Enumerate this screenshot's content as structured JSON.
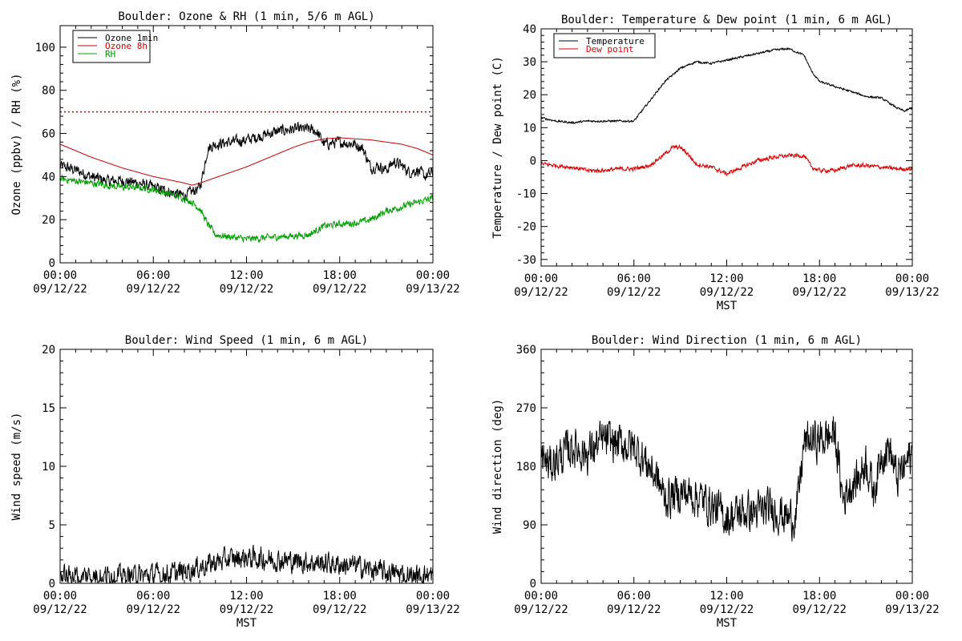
{
  "chart_data": [
    {
      "id": "ozone",
      "type": "line",
      "title": "Boulder: Ozone & RH (1 min, 5/6 m AGL)",
      "ylabel": "Ozone (ppbv) / RH (%)",
      "xlabel": "",
      "ylim": [
        0,
        110
      ],
      "yticks": [
        0,
        20,
        40,
        60,
        80,
        100
      ],
      "xlim": [
        0,
        24
      ],
      "xticks": [
        {
          "value": 0,
          "time": "00:00",
          "date": "09/12/22"
        },
        {
          "value": 6,
          "time": "06:00",
          "date": "09/12/22"
        },
        {
          "value": 12,
          "time": "12:00",
          "date": "09/12/22"
        },
        {
          "value": 18,
          "time": "18:00",
          "date": "09/12/22"
        },
        {
          "value": 24,
          "time": "00:00",
          "date": "09/13/22"
        }
      ],
      "legend": "top-left",
      "reference_line": {
        "y": 70,
        "color": "#cc0000",
        "style": "dotted"
      },
      "series": [
        {
          "name": "Ozone 1min",
          "color": "#000000",
          "noise": 2.5,
          "x": [
            0,
            0.5,
            1,
            2,
            3,
            4,
            5,
            6,
            7,
            8,
            8.5,
            9,
            9.3,
            9.5,
            10,
            11,
            12,
            13,
            14,
            15,
            16,
            16.5,
            17,
            18,
            19,
            19.5,
            20,
            20.5,
            21,
            21.5,
            22,
            22.5,
            23,
            23.5,
            24
          ],
          "y": [
            45,
            44,
            43,
            40,
            38,
            38,
            37,
            35,
            33,
            31,
            33,
            35,
            45,
            53,
            55,
            56,
            57,
            59,
            61,
            62,
            62,
            61,
            55,
            56,
            55,
            53,
            44,
            45,
            43,
            47,
            45,
            42,
            43,
            40,
            42
          ]
        },
        {
          "name": "Ozone 8h",
          "color": "#cc0000",
          "noise": 0,
          "x": [
            0,
            1,
            2,
            3,
            4,
            5,
            6,
            7,
            8,
            8.5,
            9,
            10,
            11,
            12,
            13,
            14,
            15,
            16,
            17,
            18,
            19,
            20,
            21,
            22,
            23,
            24
          ],
          "y": [
            55,
            52,
            49,
            46.5,
            44,
            42,
            40,
            38.5,
            37,
            36,
            37,
            39.5,
            42,
            44.5,
            47.5,
            50.5,
            53.5,
            56,
            57.5,
            58,
            57.5,
            57,
            56,
            55,
            53,
            50
          ]
        },
        {
          "name": "RH",
          "color": "#00a000",
          "noise": 1.5,
          "x": [
            0,
            1,
            2,
            3,
            4,
            5,
            6,
            7,
            8,
            8.5,
            9,
            9.5,
            10,
            11,
            12,
            13,
            14,
            15,
            16,
            17,
            18,
            19,
            20,
            21,
            22,
            23,
            24
          ],
          "y": [
            39,
            38,
            37,
            36,
            35,
            35,
            34,
            32,
            30,
            28,
            25,
            18,
            13,
            12,
            11,
            11.5,
            12,
            12.5,
            13,
            17,
            18,
            18.5,
            20,
            24,
            26,
            28,
            30
          ]
        }
      ]
    },
    {
      "id": "temperature",
      "type": "line",
      "title": "Boulder: Temperature & Dew point (1 min, 6 m AGL)",
      "ylabel": "Temperature / Dew point (C)",
      "xlabel": "MST",
      "ylim": [
        -32,
        40
      ],
      "yticks": [
        -30,
        -20,
        -10,
        0,
        10,
        20,
        30,
        40
      ],
      "xlim": [
        0,
        24
      ],
      "xticks": [
        {
          "value": 0,
          "time": "00:00",
          "date": "09/12/22"
        },
        {
          "value": 6,
          "time": "06:00",
          "date": "09/12/22"
        },
        {
          "value": 12,
          "time": "12:00",
          "date": "09/12/22"
        },
        {
          "value": 18,
          "time": "18:00",
          "date": "09/12/22"
        },
        {
          "value": 24,
          "time": "00:00",
          "date": "09/13/22"
        }
      ],
      "legend": "top-left",
      "series": [
        {
          "name": "Temperature",
          "color": "#000000",
          "noise": 0.3,
          "x": [
            0,
            0.5,
            1,
            2,
            3,
            4,
            5,
            6,
            7,
            8,
            8.5,
            9,
            10,
            11,
            12,
            13,
            14,
            15,
            16,
            16.5,
            17,
            17.5,
            18,
            19,
            20,
            21,
            22,
            23,
            23.5,
            24
          ],
          "y": [
            13,
            12.5,
            12,
            11.5,
            12,
            12,
            12,
            12,
            18,
            24,
            26,
            28,
            30,
            29.5,
            30.5,
            31.5,
            32.5,
            33.5,
            34,
            33,
            32,
            27,
            24,
            22.5,
            21,
            19.5,
            19,
            16,
            15,
            16
          ]
        },
        {
          "name": "Dew point",
          "color": "#dd0000",
          "noise": 0.6,
          "x": [
            0,
            1,
            2,
            3,
            4,
            5,
            6,
            7,
            8,
            8.5,
            9,
            9.5,
            10,
            11,
            12,
            13,
            14,
            15,
            16,
            17,
            17.5,
            18,
            19,
            20,
            21,
            22,
            23,
            24
          ],
          "y": [
            -1,
            -1.5,
            -2,
            -3,
            -3,
            -2.5,
            -2.5,
            -1.5,
            2,
            4,
            4,
            2,
            -1,
            -2,
            -4,
            -2,
            0,
            1,
            1.5,
            1.5,
            -2,
            -3,
            -3,
            -1.5,
            -1.5,
            -2,
            -2.5,
            -2.5
          ]
        }
      ]
    },
    {
      "id": "windspeed",
      "type": "line",
      "title": "Boulder: Wind Speed (1 min, 6 m AGL)",
      "ylabel": "Wind speed (m/s)",
      "xlabel": "MST",
      "ylim": [
        0,
        20
      ],
      "yticks": [
        0,
        5,
        10,
        15,
        20
      ],
      "xlim": [
        0,
        24
      ],
      "xticks": [
        {
          "value": 0,
          "time": "00:00",
          "date": "09/12/22"
        },
        {
          "value": 6,
          "time": "06:00",
          "date": "09/12/22"
        },
        {
          "value": 12,
          "time": "12:00",
          "date": "09/12/22"
        },
        {
          "value": 18,
          "time": "18:00",
          "date": "09/12/22"
        },
        {
          "value": 24,
          "time": "00:00",
          "date": "09/13/22"
        }
      ],
      "series": [
        {
          "name": "",
          "color": "#000000",
          "noise": 0.9,
          "floor": 0,
          "x": [
            0,
            2,
            4,
            6,
            7,
            8,
            9,
            10,
            11,
            12,
            13,
            14,
            15,
            16,
            17,
            18,
            19,
            20,
            21,
            22,
            23,
            24
          ],
          "y": [
            0.6,
            0.7,
            0.6,
            0.7,
            0.8,
            1.0,
            1.4,
            1.8,
            2.1,
            2.2,
            2.1,
            2.0,
            1.9,
            1.8,
            1.7,
            1.6,
            1.5,
            1.2,
            0.9,
            0.8,
            0.7,
            0.7
          ]
        }
      ]
    },
    {
      "id": "winddir",
      "type": "line",
      "title": "Boulder: Wind Direction (1 min, 6 m AGL)",
      "ylabel": "Wind direction (deg)",
      "xlabel": "MST",
      "ylim": [
        0,
        360
      ],
      "yticks": [
        0,
        90,
        180,
        270,
        360
      ],
      "xlim": [
        0,
        24
      ],
      "xticks": [
        {
          "value": 0,
          "time": "00:00",
          "date": "09/12/22"
        },
        {
          "value": 6,
          "time": "06:00",
          "date": "09/12/22"
        },
        {
          "value": 12,
          "time": "12:00",
          "date": "09/12/22"
        },
        {
          "value": 18,
          "time": "18:00",
          "date": "09/12/22"
        },
        {
          "value": 24,
          "time": "00:00",
          "date": "09/13/22"
        }
      ],
      "series": [
        {
          "name": "",
          "color": "#000000",
          "noise": 30,
          "floor": 5,
          "x": [
            0,
            0.5,
            1,
            2,
            3,
            4,
            5,
            6,
            7,
            7.5,
            8,
            9,
            10,
            11,
            12,
            13,
            14,
            15,
            16,
            16.5,
            17,
            17.5,
            18,
            18.5,
            19,
            19.5,
            20,
            20.5,
            21,
            21.5,
            22,
            22.5,
            23,
            23.5,
            24
          ],
          "y": [
            200,
            180,
            190,
            210,
            200,
            220,
            215,
            210,
            180,
            160,
            130,
            140,
            135,
            120,
            100,
            110,
            110,
            115,
            100,
            105,
            215,
            220,
            220,
            225,
            230,
            130,
            150,
            160,
            190,
            140,
            200,
            210,
            160,
            180,
            200
          ]
        }
      ]
    }
  ]
}
